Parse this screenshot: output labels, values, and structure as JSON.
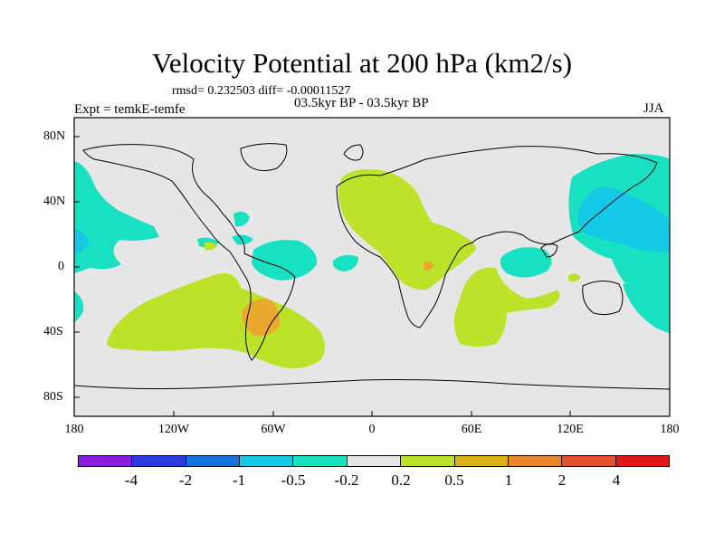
{
  "title": "Velocity Potential at 200 hPa (km2/s)",
  "stats_text": "rmsd= 0.232503 diff= -0.00011527",
  "experiment_text": "Expt = temkE-temfe",
  "period_text": "03.5kyr BP - 03.5kyr BP",
  "season_text": "JJA",
  "axes": {
    "lat_ticks": [
      "80N",
      "40N",
      "0",
      "40S",
      "80S"
    ],
    "lon_ticks": [
      "180",
      "120W",
      "60W",
      "0",
      "60E",
      "120E",
      "180"
    ]
  },
  "colors": {
    "background": "#e6e6e6",
    "neg_1": "#18e0c2",
    "neg_2": "#14c8e6",
    "pos_1": "#bde22a",
    "pos_2": "#e9a92f",
    "pos_3": "#e5821e"
  },
  "colorbar": {
    "levels": [
      "-4",
      "-2",
      "-1",
      "-0.5",
      "-0.2",
      "0.2",
      "0.5",
      "1",
      "2",
      "4"
    ],
    "colors": [
      "#8c1ddd",
      "#2b3be0",
      "#1472d8",
      "#14c8e6",
      "#18e0c2",
      "#e6e6e6",
      "#bde22a",
      "#dbb21a",
      "#e9862c",
      "#e6502a",
      "#e01818"
    ]
  },
  "chart_data": {
    "type": "map",
    "title": "Velocity Potential at 200 hPa (km2/s)",
    "variable": "Velocity Potential at 200 hPa",
    "units": "km2/s",
    "experiment": "temkE-temfe",
    "period": "03.5kyr BP - 03.5kyr BP",
    "season": "JJA",
    "rmsd": 0.232503,
    "diff": -0.00011527,
    "lat_range": [
      -90,
      90
    ],
    "lon_range": [
      -180,
      180
    ],
    "contour_levels": [
      -4,
      -2,
      -1,
      -0.5,
      -0.2,
      0.2,
      0.5,
      1,
      2,
      4
    ],
    "features": [
      {
        "region": "North Africa / Mediterranean / East Africa",
        "class": "0.2 to 0.5"
      },
      {
        "region": "East Africa",
        "class": "0.5 to 1"
      },
      {
        "region": "South America / South Atlantic / Southeast Pacific",
        "class": "0.2 to 0.5"
      },
      {
        "region": "Southern South America",
        "class": "0.5 to 1"
      },
      {
        "region": "Southern Indian Ocean",
        "class": "0.2 to 0.5"
      },
      {
        "region": "Central Pacific / North America",
        "class": "-0.5 to -0.2"
      },
      {
        "region": "East Asia / West Pacific",
        "class": "-0.5 to -0.2"
      },
      {
        "region": "Northwest Pacific",
        "class": "-1 to -0.5"
      },
      {
        "region": "Tropical Atlantic",
        "class": "-0.5 to -0.2"
      },
      {
        "region": "Eastern Indian Ocean",
        "class": "-0.5 to -0.2"
      },
      {
        "region": "Southwest Pacific",
        "class": "-0.5 to -0.2"
      }
    ]
  }
}
